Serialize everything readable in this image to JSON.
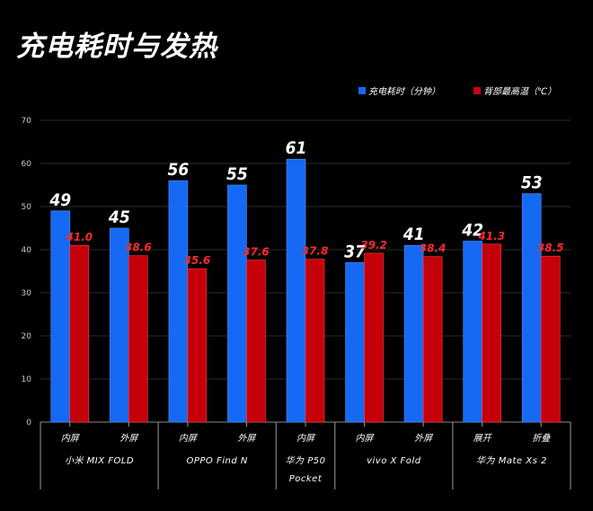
{
  "title": "充电耗时与发热",
  "chart_data": {
    "type": "bar",
    "title": "充电耗时与发热",
    "ylim": [
      0,
      70
    ],
    "yticks": [
      0,
      10,
      20,
      30,
      40,
      50,
      60,
      70
    ],
    "grid": true,
    "legend_position": "top-right",
    "categories": [
      "内屏",
      "外屏",
      "内屏",
      "外屏",
      "内屏",
      "内屏",
      "外屏",
      "展开",
      "折叠"
    ],
    "groups": [
      {
        "name": "小米 MIX FOLD",
        "size": 2
      },
      {
        "name": "OPPO Find N",
        "size": 2
      },
      {
        "name": "华为 P50 Pocket",
        "size": 1
      },
      {
        "name": "vivo X Fold",
        "size": 2
      },
      {
        "name": "华为 Mate Xs 2",
        "size": 2
      }
    ],
    "series": [
      {
        "name": "充电耗时（分钟）",
        "color": "#1569f2",
        "values": [
          49,
          45,
          56,
          55,
          61,
          37,
          41,
          42,
          53
        ],
        "labels": [
          "49",
          "45",
          "56",
          "55",
          "61",
          "37",
          "41",
          "42",
          "53"
        ]
      },
      {
        "name": "背部最高温（℃）",
        "color": "#c4000b",
        "values": [
          41.0,
          38.6,
          35.6,
          37.6,
          37.8,
          39.2,
          38.4,
          41.3,
          38.5
        ],
        "labels": [
          "41.0",
          "38.6",
          "35.6",
          "37.6",
          "37.8",
          "39.2",
          "38.4",
          "41.3",
          "38.5"
        ]
      }
    ]
  }
}
